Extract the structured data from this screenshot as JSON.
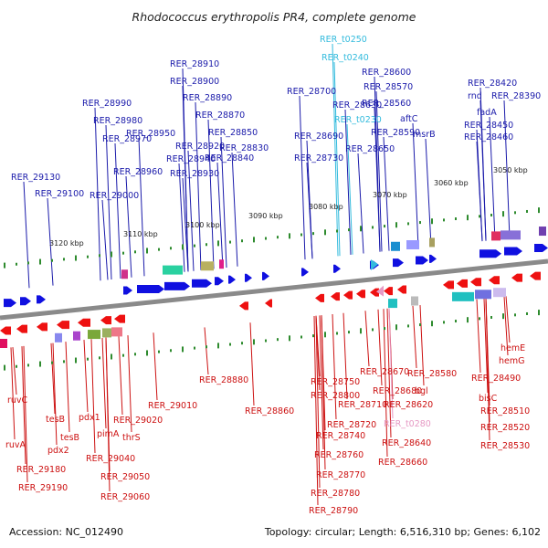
{
  "title": "Rhodococcus erythropolis PR4, complete genome",
  "footer": {
    "accession": "Accession: NC_012490",
    "topology": "Topology: circular; Length: 6,516,310 bp; Genes: 6,102"
  },
  "colors": {
    "forward_label": "#1a1aaa",
    "reverse_label": "#cc1111",
    "forward_trna": "#33bbdd",
    "reverse_trna": "#e699c4",
    "backbone": "#8a8a8a",
    "tick": "#2e8b2e"
  },
  "ticks": [
    "3120 kbp",
    "3110 kbp",
    "3100 kbp",
    "3090 kbp",
    "3080 kbp",
    "3070 kbp",
    "3060 kbp",
    "3050 kbp"
  ],
  "forward_labels": [
    "RER_28910",
    "RER_28900",
    "RER_28890",
    "RER_28870",
    "RER_28850",
    "RER_28830",
    "RER_28840",
    "RER_28920",
    "RER_28940",
    "RER_28930",
    "RER_28950",
    "RER_28990",
    "RER_28980",
    "RER_28970",
    "RER_28960",
    "RER_29000",
    "RER_29130",
    "RER_29100",
    "RER_28700",
    "RER_28690",
    "RER_28730",
    "RER_t0250",
    "RER_t0240",
    "RER_28600",
    "RER_28570",
    "RER_28560",
    "RER_28630",
    "RER_t0230",
    "aftC",
    "RER_28590",
    "msrB",
    "RER_28650",
    "RER_28420",
    "rnd",
    "RER_28390",
    "fadA",
    "RER_28450",
    "RER_28460"
  ],
  "reverse_labels": [
    "RER_28880",
    "RER_28860",
    "RER_28750",
    "RER_28800",
    "RER_28710",
    "RER_28720",
    "RER_28740",
    "RER_28760",
    "RER_28770",
    "RER_28780",
    "RER_28790",
    "RER_28670",
    "RER_28680",
    "RER_28620",
    "RER_t0280",
    "RER_28640",
    "RER_28660",
    "RER_28580",
    "bgl",
    "RER_28490",
    "bisC",
    "RER_28510",
    "RER_28520",
    "RER_28530",
    "hemE",
    "hemG",
    "RER_29010",
    "RER_29020",
    "thrS",
    "pimA",
    "RER_29040",
    "RER_29050",
    "RER_29060",
    "pdx1",
    "tesB",
    "tesB",
    "pdx2",
    "ruvC",
    "ruvA",
    "RER_29180",
    "RER_29190"
  ]
}
